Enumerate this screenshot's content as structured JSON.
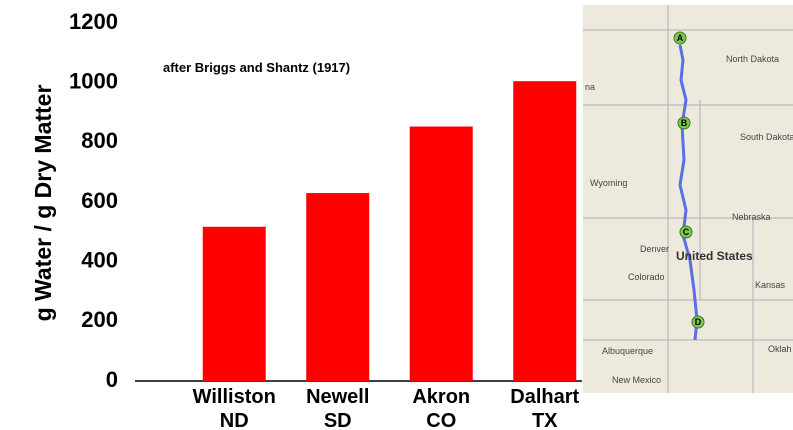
{
  "chart_data": {
    "type": "bar",
    "annotation": "after Briggs and Shantz (1917)",
    "y_label": "g Water / g Dry Matter",
    "categories": [
      [
        "Williston",
        "ND"
      ],
      [
        "Newell",
        "SD"
      ],
      [
        "Akron",
        "CO"
      ],
      [
        "Dalhart",
        "TX"
      ]
    ],
    "values": [
      517,
      630,
      853,
      1005
    ],
    "color": "#ff0000",
    "ylim": [
      0,
      1200
    ],
    "yticks": [
      0,
      200,
      400,
      600,
      800,
      1000,
      1200
    ],
    "grid": false
  },
  "map": {
    "markers": [
      "A",
      "B",
      "C",
      "D"
    ],
    "labels": [
      "North Dakota",
      "South Dakota",
      "Wyoming",
      "Nebraska",
      "Denver",
      "Colorado",
      "United States",
      "Kansas",
      "Albuquerque",
      "New Mexico",
      "Oklah",
      "na"
    ]
  }
}
